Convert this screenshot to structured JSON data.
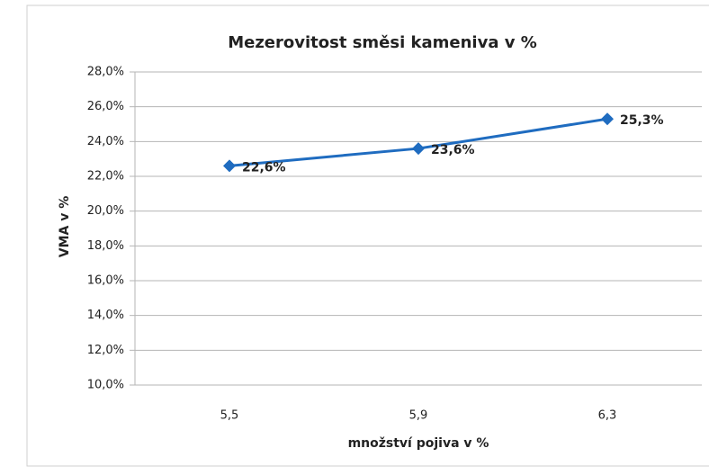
{
  "chart_data": {
    "type": "line",
    "title": "Mezerovitost směsi kameniva v %",
    "x_label": "množství pojiva v %",
    "y_label": "VMA v %",
    "categories": [
      "5,5",
      "5,9",
      "6,3"
    ],
    "series": [
      {
        "name": "VMA",
        "color": "#1f6cc0",
        "values": [
          22.6,
          23.6,
          25.3
        ],
        "value_labels": [
          "22,6%",
          "23,6%",
          "25,3%"
        ]
      }
    ],
    "ylim": [
      10,
      28
    ],
    "yticks": [
      {
        "value": 10,
        "label": "10,0%"
      },
      {
        "value": 12,
        "label": "12,0%"
      },
      {
        "value": 14,
        "label": "14,0%"
      },
      {
        "value": 16,
        "label": "16,0%"
      },
      {
        "value": 18,
        "label": "18,0%"
      },
      {
        "value": 20,
        "label": "20,0%"
      },
      {
        "value": 22,
        "label": "22,0%"
      },
      {
        "value": 24,
        "label": "24,0%"
      },
      {
        "value": 26,
        "label": "26,0%"
      },
      {
        "value": 28,
        "label": "28,0%"
      }
    ],
    "grid": true
  }
}
